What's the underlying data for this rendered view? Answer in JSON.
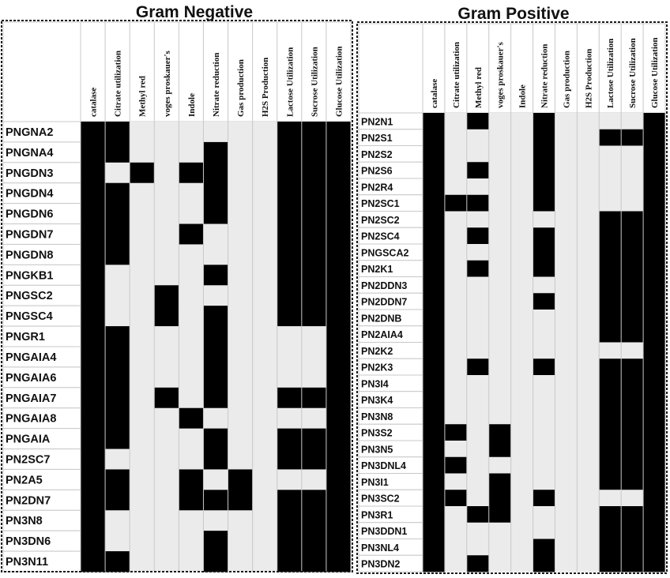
{
  "chart_data": [
    {
      "type": "heatmap",
      "title": "Gram Negative",
      "columns": [
        "catalase",
        "Citrate utilization",
        "Methyl red",
        "voges proskauer's",
        "Indole",
        "Nitrate reduction",
        "Gas production",
        "H2S Production",
        "Lactose Utilization",
        "Sucrose Utilization",
        "Glucose Utilization"
      ],
      "rows": [
        "PNGNA2",
        "PNGNA4",
        "PNGDN3",
        "PNGDN4",
        "PNGDN6",
        "PNGDN7",
        "PNGDN8",
        "PNGKB1",
        "PNGSC2",
        "PNGSC4",
        "PNGR1",
        "PNGAIA4",
        "PNGAIA6",
        "PNGAIA7",
        "PNGAIA8",
        "PNGAIA",
        "PN2SC7",
        "PN2A5",
        "PN2DN7",
        "PN3N8",
        "PN3DN6",
        "PN3N11"
      ],
      "values": [
        [
          1,
          1,
          0,
          0,
          0,
          0,
          0,
          0,
          1,
          1,
          1
        ],
        [
          1,
          1,
          0,
          0,
          0,
          1,
          0,
          0,
          1,
          1,
          1
        ],
        [
          1,
          0,
          1,
          0,
          1,
          1,
          0,
          0,
          1,
          1,
          1
        ],
        [
          1,
          1,
          0,
          0,
          0,
          1,
          0,
          0,
          1,
          1,
          1
        ],
        [
          1,
          1,
          0,
          0,
          0,
          1,
          0,
          0,
          1,
          1,
          1
        ],
        [
          1,
          1,
          0,
          0,
          1,
          0,
          0,
          0,
          1,
          1,
          1
        ],
        [
          1,
          1,
          0,
          0,
          0,
          0,
          0,
          0,
          1,
          1,
          1
        ],
        [
          1,
          0,
          0,
          0,
          0,
          1,
          0,
          0,
          1,
          1,
          1
        ],
        [
          1,
          0,
          0,
          1,
          0,
          0,
          0,
          0,
          1,
          1,
          1
        ],
        [
          1,
          0,
          0,
          1,
          0,
          1,
          0,
          0,
          1,
          1,
          1
        ],
        [
          1,
          1,
          0,
          0,
          0,
          1,
          0,
          0,
          0,
          0,
          1
        ],
        [
          1,
          1,
          0,
          0,
          0,
          1,
          0,
          0,
          0,
          0,
          1
        ],
        [
          1,
          1,
          0,
          0,
          0,
          1,
          0,
          0,
          0,
          0,
          1
        ],
        [
          1,
          1,
          0,
          1,
          0,
          1,
          0,
          0,
          1,
          1,
          1
        ],
        [
          1,
          1,
          0,
          0,
          1,
          0,
          0,
          0,
          0,
          0,
          1
        ],
        [
          1,
          1,
          0,
          0,
          0,
          1,
          0,
          0,
          1,
          1,
          1
        ],
        [
          1,
          0,
          0,
          0,
          0,
          1,
          0,
          0,
          1,
          1,
          1
        ],
        [
          1,
          1,
          0,
          0,
          1,
          0,
          1,
          0,
          0,
          0,
          1
        ],
        [
          1,
          1,
          0,
          0,
          1,
          1,
          1,
          0,
          1,
          1,
          1
        ],
        [
          1,
          0,
          0,
          0,
          0,
          0,
          0,
          0,
          1,
          1,
          1
        ],
        [
          1,
          0,
          0,
          0,
          0,
          1,
          0,
          0,
          1,
          1,
          1
        ],
        [
          1,
          1,
          0,
          0,
          0,
          1,
          0,
          0,
          1,
          1,
          1
        ]
      ]
    },
    {
      "type": "heatmap",
      "title": "Gram Positive",
      "columns": [
        "catalase",
        "Citrate utilization",
        "Methyl red",
        "voges proskauer's",
        "Indole",
        "Nitrate reduction",
        "Gas production",
        "H2S Production",
        "Lactose Utilization",
        "Sucrose Utilization",
        "Glucose Utilization"
      ],
      "rows": [
        "PN2N1",
        "PN2S1",
        "PN2S2",
        "PN2S6",
        "PN2R4",
        "PN2SC1",
        "PN2SC2",
        "PN2SC4",
        "PNGSCA2",
        "PN2K1",
        "PN2DDN3",
        "PN2DDN7",
        "PN2DNB",
        "PN2AIA4",
        "PN2K2",
        "PN2K3",
        "PN3I4",
        "PN3K4",
        "PN3N8",
        "PN3S2",
        "PN3N5",
        "PN3DNL4",
        "PN3I1",
        "PN3SC2",
        "PN3R1",
        "PN3DDN1",
        "PN3NL4",
        "PN3DN2"
      ],
      "values": [
        [
          1,
          0,
          1,
          0,
          0,
          1,
          0,
          0,
          0,
          0,
          1
        ],
        [
          1,
          0,
          0,
          0,
          0,
          1,
          0,
          0,
          1,
          1,
          1
        ],
        [
          1,
          0,
          0,
          0,
          0,
          1,
          0,
          0,
          0,
          0,
          1
        ],
        [
          1,
          0,
          1,
          0,
          0,
          1,
          0,
          0,
          0,
          0,
          1
        ],
        [
          1,
          0,
          0,
          0,
          0,
          1,
          0,
          0,
          0,
          0,
          1
        ],
        [
          1,
          1,
          1,
          0,
          0,
          1,
          0,
          0,
          0,
          0,
          1
        ],
        [
          1,
          0,
          0,
          0,
          0,
          0,
          0,
          0,
          1,
          1,
          1
        ],
        [
          1,
          0,
          1,
          0,
          0,
          1,
          0,
          0,
          1,
          1,
          1
        ],
        [
          1,
          0,
          0,
          0,
          0,
          1,
          0,
          0,
          1,
          1,
          1
        ],
        [
          1,
          0,
          1,
          0,
          0,
          1,
          0,
          0,
          1,
          1,
          1
        ],
        [
          1,
          0,
          0,
          0,
          0,
          0,
          0,
          0,
          1,
          1,
          1
        ],
        [
          1,
          0,
          0,
          0,
          0,
          1,
          0,
          0,
          1,
          1,
          1
        ],
        [
          1,
          0,
          0,
          0,
          0,
          0,
          0,
          0,
          1,
          1,
          1
        ],
        [
          1,
          0,
          0,
          0,
          0,
          0,
          0,
          0,
          1,
          1,
          1
        ],
        [
          1,
          0,
          0,
          0,
          0,
          0,
          0,
          0,
          0,
          0,
          1
        ],
        [
          1,
          0,
          1,
          0,
          0,
          1,
          0,
          0,
          1,
          1,
          1
        ],
        [
          1,
          0,
          0,
          0,
          0,
          0,
          0,
          0,
          1,
          1,
          1
        ],
        [
          1,
          0,
          0,
          0,
          0,
          0,
          0,
          0,
          1,
          1,
          1
        ],
        [
          1,
          0,
          0,
          0,
          0,
          0,
          0,
          0,
          1,
          1,
          1
        ],
        [
          1,
          1,
          0,
          1,
          0,
          0,
          0,
          0,
          1,
          1,
          1
        ],
        [
          1,
          0,
          0,
          1,
          0,
          0,
          0,
          0,
          1,
          1,
          1
        ],
        [
          1,
          1,
          0,
          0,
          0,
          0,
          0,
          0,
          1,
          1,
          1
        ],
        [
          1,
          0,
          0,
          1,
          0,
          0,
          0,
          0,
          1,
          1,
          1
        ],
        [
          1,
          1,
          0,
          1,
          0,
          1,
          0,
          0,
          0,
          0,
          1
        ],
        [
          1,
          0,
          1,
          1,
          0,
          0,
          0,
          0,
          1,
          1,
          1
        ],
        [
          1,
          0,
          0,
          0,
          0,
          0,
          0,
          0,
          1,
          1,
          1
        ],
        [
          1,
          0,
          0,
          0,
          0,
          1,
          0,
          0,
          1,
          1,
          1
        ],
        [
          1,
          0,
          1,
          0,
          0,
          1,
          0,
          0,
          1,
          1,
          1
        ]
      ]
    }
  ],
  "colors": {
    "positive": "#000000",
    "negative": "#ebebeb",
    "border": "#1a1a1a",
    "grid": "#c8c8c8"
  }
}
